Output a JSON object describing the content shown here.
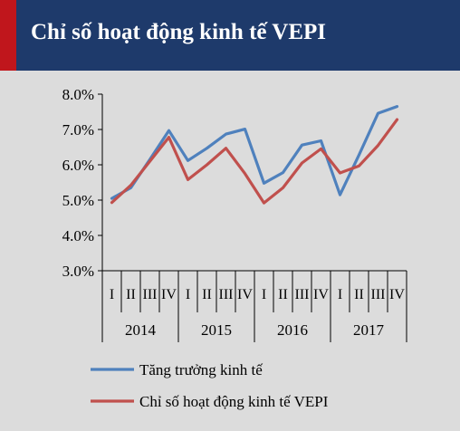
{
  "header": {
    "title": "Chỉ số hoạt động kinh tế VEPI",
    "bg_color": "#1e3a6b",
    "accent_color": "#c0161c"
  },
  "chart_data": {
    "type": "line",
    "title": "Chỉ số hoạt động kinh tế VEPI",
    "xlabel": "",
    "ylabel": "",
    "ylim": [
      3.0,
      8.0
    ],
    "y_ticks": [
      "3.0%",
      "4.0%",
      "5.0%",
      "6.0%",
      "7.0%",
      "8.0%"
    ],
    "grid": false,
    "legend_position": "bottom",
    "categories": [
      "I",
      "II",
      "III",
      "IV",
      "I",
      "II",
      "III",
      "IV",
      "I",
      "II",
      "III",
      "IV",
      "I",
      "II",
      "III",
      "IV"
    ],
    "groups": [
      {
        "label": "2014",
        "size": 4
      },
      {
        "label": "2015",
        "size": 4
      },
      {
        "label": "2016",
        "size": 4
      },
      {
        "label": "2017",
        "size": 4
      }
    ],
    "series": [
      {
        "name": "Tăng trưởng kinh tế",
        "color": "#4f81bd",
        "values": [
          5.05,
          5.35,
          6.15,
          6.97,
          6.12,
          6.47,
          6.87,
          7.01,
          5.48,
          5.78,
          6.56,
          6.68,
          5.15,
          6.28,
          7.46,
          7.65
        ]
      },
      {
        "name": "Chỉ số hoạt động kinh tế VEPI",
        "color": "#c0504d",
        "values": [
          4.93,
          5.42,
          6.1,
          6.78,
          5.58,
          6.0,
          6.47,
          5.75,
          4.92,
          5.35,
          6.05,
          6.45,
          5.77,
          5.97,
          6.55,
          7.28
        ]
      }
    ]
  }
}
